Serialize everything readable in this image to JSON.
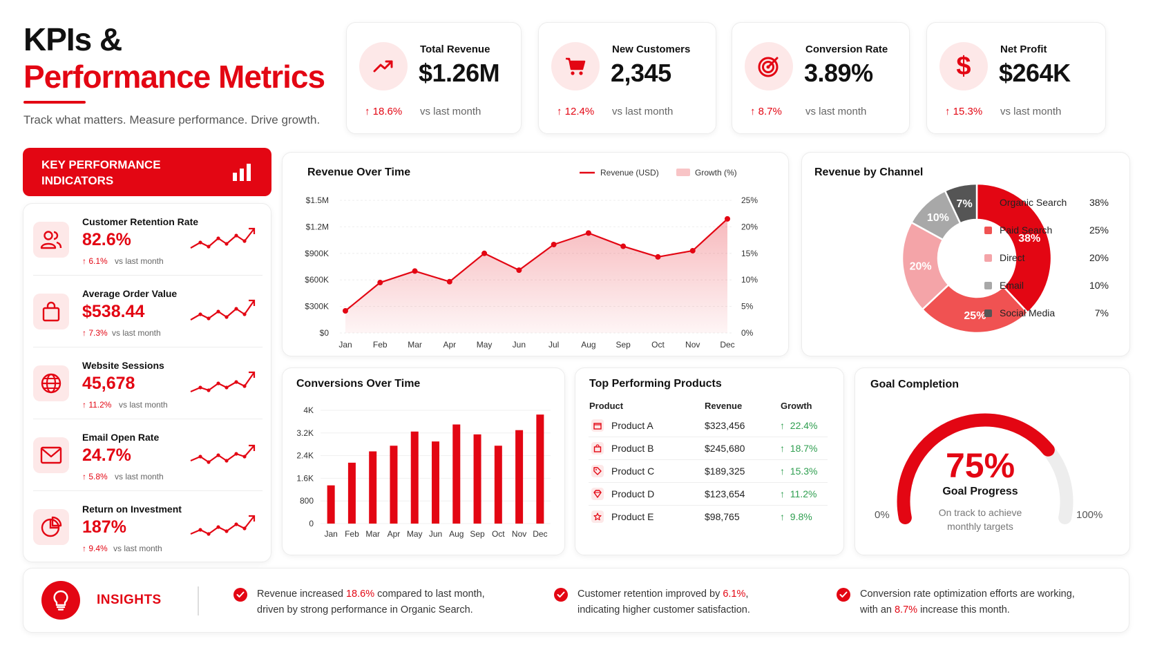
{
  "header": {
    "title_line1": "KPIs &",
    "title_line2": "Performance Metrics",
    "subtitle": "Track what matters. Measure performance. Drive growth."
  },
  "kpi_cards": [
    {
      "label": "Total Revenue",
      "value": "$1.26M",
      "delta": "18.6%",
      "compare": "vs last month",
      "icon": "trending-up-icon"
    },
    {
      "label": "New Customers",
      "value": "2,345",
      "delta": "12.4%",
      "compare": "vs last month",
      "icon": "cart-icon"
    },
    {
      "label": "Conversion Rate",
      "value": "3.89%",
      "delta": "8.7%",
      "compare": "vs last month",
      "icon": "target-icon"
    },
    {
      "label": "Net Profit",
      "value": "$264K",
      "delta": "15.3%",
      "compare": "vs last month",
      "icon": "dollar-icon"
    }
  ],
  "kpi_panel": {
    "banner": "KEY PERFORMANCE INDICATORS",
    "items": [
      {
        "label": "Customer Retention Rate",
        "value": "82.6%",
        "delta": "6.1%",
        "compare": "vs last month",
        "icon": "users-icon"
      },
      {
        "label": "Average Order Value",
        "value": "$538.44",
        "delta": "7.3%",
        "compare": "vs last month",
        "icon": "shopping-bag-icon"
      },
      {
        "label": "Website Sessions",
        "value": "45,678",
        "delta": "11.2%",
        "compare": "vs last month",
        "icon": "globe-icon"
      },
      {
        "label": "Email Open Rate",
        "value": "24.7%",
        "delta": "5.8%",
        "compare": "vs last month",
        "icon": "mail-icon"
      },
      {
        "label": "Return on Investment",
        "value": "187%",
        "delta": "9.4%",
        "compare": "vs last month",
        "icon": "pie-chart-icon"
      }
    ]
  },
  "revenue_card": {
    "title": "Revenue Over Time"
  },
  "conversions_card": {
    "title": "Conversions Over Time"
  },
  "channel_card": {
    "title": "Revenue by Channel"
  },
  "products": {
    "title": "Top Performing Products",
    "headers": [
      "Product",
      "Revenue",
      "Growth"
    ],
    "rows": [
      {
        "name": "Product A",
        "revenue": "$323,456",
        "growth": "22.4%",
        "icon": "box-icon"
      },
      {
        "name": "Product B",
        "revenue": "$245,680",
        "growth": "18.7%",
        "icon": "bag-icon"
      },
      {
        "name": "Product C",
        "revenue": "$189,325",
        "growth": "15.3%",
        "icon": "tag-icon"
      },
      {
        "name": "Product D",
        "revenue": "$123,654",
        "growth": "11.2%",
        "icon": "diamond-icon"
      },
      {
        "name": "Product E",
        "revenue": "$98,765",
        "growth": "9.8%",
        "icon": "star-icon"
      }
    ]
  },
  "goal": {
    "title": "Goal Completion",
    "value": "75%",
    "progress": 0.75,
    "label": "Goal Progress",
    "description": "On track to achieve monthly targets",
    "min_label": "0%",
    "max_label": "100%"
  },
  "insights": {
    "title": "INSIGHTS",
    "items": [
      {
        "pre": "Revenue increased ",
        "highlight": "18.6%",
        "post": " compared to last month,",
        "line2": "driven by strong performance in Organic Search."
      },
      {
        "pre": "Customer retention improved by ",
        "highlight": "6.1%",
        "post": ",",
        "line2": "indicating higher customer satisfaction."
      },
      {
        "pre": "Conversion rate optimization efforts are working,",
        "highlight": "",
        "post": "",
        "line2_pre": "with an ",
        "line2_highlight": "8.7%",
        "line2_post": " increase this month."
      }
    ]
  },
  "colors": {
    "accent": "#e30613",
    "accent_light": "#fde8e8",
    "positive": "#2e9e4f"
  },
  "chart_data": [
    {
      "type": "line",
      "title": "Revenue Over Time",
      "categories": [
        "Jan",
        "Feb",
        "Mar",
        "Apr",
        "May",
        "Jun",
        "Jul",
        "Aug",
        "Sep",
        "Oct",
        "Nov",
        "Dec"
      ],
      "y_ticks": [
        "$0",
        "$300K",
        "$600K",
        "$900K",
        "$1.2M",
        "$1.5M"
      ],
      "y2_ticks": [
        "0%",
        "5%",
        "10%",
        "15%",
        "20%",
        "25%"
      ],
      "ylim": [
        0,
        1500000
      ],
      "y2lim": [
        0,
        25
      ],
      "series": [
        {
          "name": "Revenue (USD)",
          "values": [
            250000,
            570000,
            700000,
            580000,
            900000,
            710000,
            1000000,
            1130000,
            980000,
            860000,
            930000,
            1290000
          ]
        },
        {
          "name": "Growth (%)",
          "values": [
            4,
            9.5,
            11.5,
            9.5,
            15,
            12,
            16.5,
            19,
            16.5,
            14.5,
            15.5,
            21.5
          ]
        }
      ],
      "legend": "top-right",
      "grid": true
    },
    {
      "type": "bar",
      "title": "Conversions Over Time",
      "categories": [
        "Jan",
        "Feb",
        "Mar",
        "Apr",
        "May",
        "Jun",
        "Aug",
        "Sep",
        "Oct",
        "Nov",
        "Dec"
      ],
      "values": [
        1350,
        2150,
        2550,
        2750,
        3250,
        2900,
        3500,
        3150,
        2750,
        3300,
        3850
      ],
      "y_ticks": [
        "0",
        "800",
        "1.6K",
        "2.4K",
        "3.2K",
        "4K"
      ],
      "ylim": [
        0,
        4000
      ],
      "grid": true
    },
    {
      "type": "pie",
      "title": "Revenue by Channel",
      "labels": [
        "Organic Search",
        "Paid Search",
        "Direct",
        "Email",
        "Social Media"
      ],
      "values": [
        38,
        25,
        20,
        10,
        7
      ],
      "display": [
        "38%",
        "25%",
        "20%",
        "10%",
        "7%"
      ],
      "colors": [
        "#e30613",
        "#f05252",
        "#f4a4a8",
        "#a8a8a8",
        "#555555"
      ],
      "legend": "right"
    }
  ]
}
